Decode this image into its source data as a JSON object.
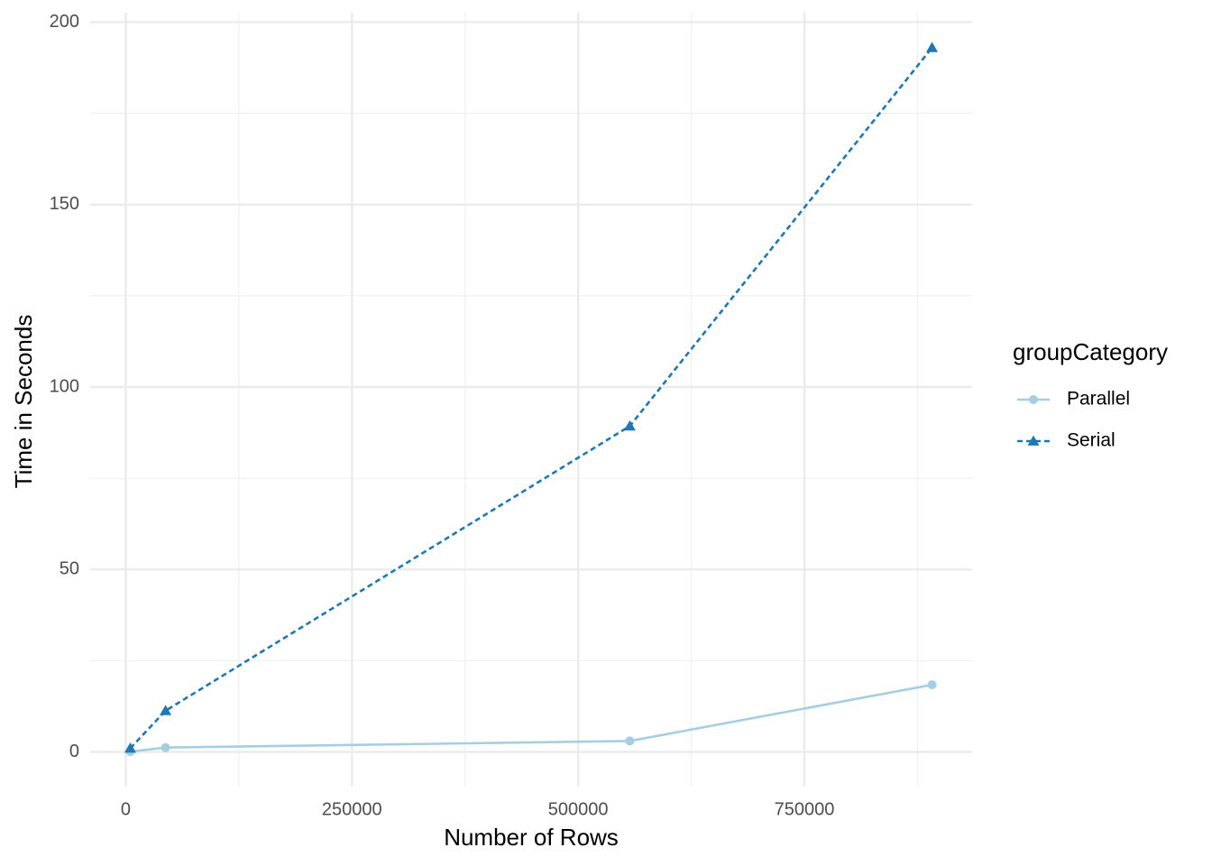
{
  "chart_data": {
    "type": "line",
    "x_label": "Number of Rows",
    "y_label": "Time in Seconds",
    "legend_title": "groupCategory",
    "legend_position": "right",
    "xlim": [
      -39300,
      935300
    ],
    "ylim": [
      -9.5,
      202.6
    ],
    "xticks": [
      0,
      250000,
      500000,
      750000
    ],
    "yticks": [
      0,
      50,
      100,
      150,
      200
    ],
    "x_minor_ticks": [
      125000,
      375000,
      625000,
      875000
    ],
    "y_minor_ticks": [
      25,
      75,
      125,
      175
    ],
    "grid": true,
    "x": [
      5000,
      44000,
      557000,
      891000
    ],
    "series": [
      {
        "name": "Parallel",
        "color": "#a6cee3",
        "linetype": "solid",
        "marker": "circle",
        "values": [
          0.1,
          1.2,
          3,
          18.4
        ]
      },
      {
        "name": "Serial",
        "color": "#1f78b4",
        "linetype": "dashed",
        "marker": "triangle",
        "values": [
          1,
          11.3,
          89.3,
          193
        ]
      }
    ]
  }
}
